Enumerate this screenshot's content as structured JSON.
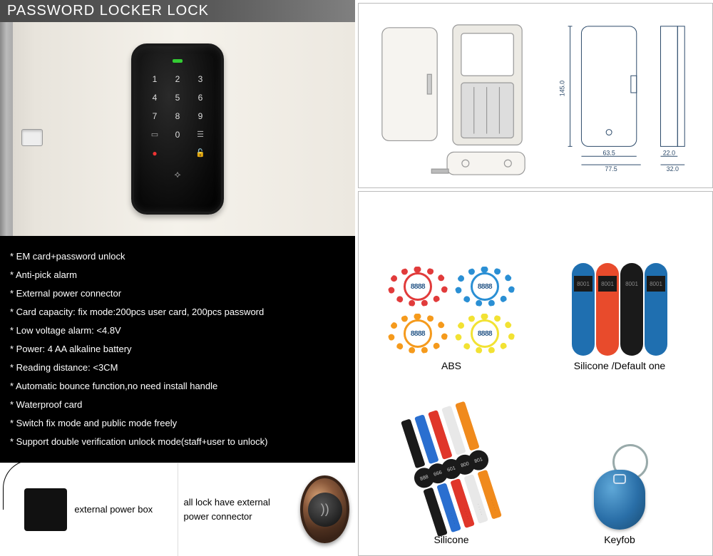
{
  "title": "PASSWORD LOCKER LOCK",
  "keypad": {
    "keys": [
      "1",
      "2",
      "3",
      "4",
      "5",
      "6",
      "7",
      "8",
      "9"
    ],
    "led_color": "#33cc33"
  },
  "specs": [
    "* EM card+password unlock",
    "* Anti-pick alarm",
    "* External power connector",
    "* Card capacity: fix mode:200pcs user card, 200pcs password",
    "* Low voltage alarm: <4.8V",
    "* Power: 4 AA alkaline battery",
    "* Reading distance: <3CM",
    "* Automatic bounce function,no need install handle",
    "* Waterproof card",
    "* Switch fix mode and public mode freely",
    "* Support double verification unlock mode(staff+user to unlock)"
  ],
  "left_bottom": {
    "ext_power_label": "external power box",
    "knob_label": "all lock have external power connector"
  },
  "tech": {
    "dim_h": "145.0",
    "dim_w1": "63.5",
    "dim_w2": "77.5",
    "dim_d1": "22.0",
    "dim_d2": "32.0",
    "stroke": "#2c4a6a",
    "text_color": "#2c4a6a"
  },
  "accessories": {
    "abs": {
      "label": "ABS",
      "face_text": "8888",
      "bands": [
        {
          "color": "#e13b3b"
        },
        {
          "color": "#2a8fd4"
        },
        {
          "color": "#f59a1c"
        },
        {
          "color": "#f2e233"
        }
      ]
    },
    "silicone_default": {
      "label": "Silicone /Default one",
      "tag_text": "8001",
      "bands": [
        {
          "color": "#1f6fb0"
        },
        {
          "color": "#e84b2c"
        },
        {
          "color": "#1a1a1a"
        },
        {
          "color": "#1f6fb0"
        }
      ]
    },
    "silicone_watch": {
      "label": "Silicone",
      "bands": [
        {
          "color": "#1a1a1a",
          "num": "888"
        },
        {
          "color": "#2a6fd0",
          "num": "666"
        },
        {
          "color": "#e0362a",
          "num": "601"
        },
        {
          "color": "#e8e8e8",
          "num": "800"
        },
        {
          "color": "#f08a1c",
          "num": "801"
        }
      ]
    },
    "keyfob": {
      "label": "Keyfob",
      "body_color_light": "#5fa8d8",
      "body_color_dark": "#184a70"
    }
  }
}
